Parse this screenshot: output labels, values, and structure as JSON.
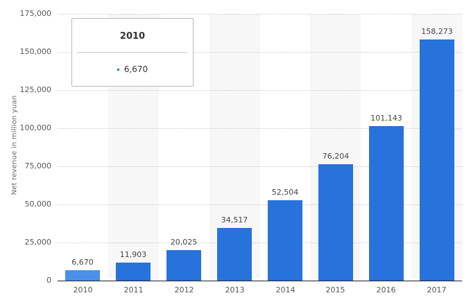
{
  "chart_data": {
    "type": "bar",
    "title": "",
    "xlabel": "",
    "ylabel": "Net revenue in million yuan",
    "categories": [
      "2010",
      "2011",
      "2012",
      "2013",
      "2014",
      "2015",
      "2016",
      "2017"
    ],
    "values": [
      6670,
      11903,
      20025,
      34517,
      52504,
      76204,
      101143,
      158273
    ],
    "value_labels": [
      "6,670",
      "11,903",
      "20,025",
      "34,517",
      "52,504",
      "76,204",
      "101,143",
      "158,273"
    ],
    "ylim": [
      0,
      175000
    ],
    "yticks": [
      0,
      25000,
      50000,
      75000,
      100000,
      125000,
      150000,
      175000
    ],
    "ytick_labels": [
      "0",
      "25,000",
      "50,000",
      "75,000",
      "100,000",
      "125,000",
      "150,000",
      "175,000"
    ],
    "grid": true,
    "legend": null,
    "colors": {
      "bar": "#2872dc",
      "bar_hover": "#4a8fe8",
      "band": "#f7f7f7",
      "grid": "#c8c8c8",
      "axis": "#222222"
    },
    "highlighted_index": 0
  },
  "tooltip": {
    "title": "2010",
    "value": "6,670"
  }
}
